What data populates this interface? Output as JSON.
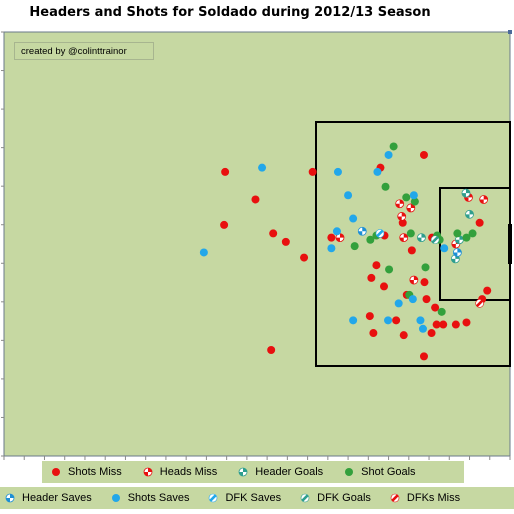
{
  "title": "Headers and Shots for Soldado during 2012/13 Season",
  "credit": "created  by @colinttrainor",
  "colors": {
    "pitch_bg": "#c6d8a2",
    "shots_miss": "#e8100f",
    "heads_miss": "#e8100f",
    "header_goals": "#2e9e8e",
    "shot_goals": "#33a03c",
    "header_saves": "#1d8fd6",
    "shots_saves": "#22a7ea",
    "dfk_saves": "#22a7ea",
    "dfk_goals": "#2e9e8e",
    "dfks_miss": "#e8100f"
  },
  "legend": {
    "row1": [
      {
        "key": "shots_miss",
        "label": "Shots Miss",
        "marker": "solid"
      },
      {
        "key": "heads_miss",
        "label": "Heads Miss",
        "marker": "checker"
      },
      {
        "key": "header_goals",
        "label": "Header Goals",
        "marker": "checker"
      },
      {
        "key": "shot_goals",
        "label": "Shot Goals",
        "marker": "solid"
      }
    ],
    "row2": [
      {
        "key": "header_saves",
        "label": "Header Saves",
        "marker": "checker"
      },
      {
        "key": "shots_saves",
        "label": "Shots Saves",
        "marker": "solid"
      },
      {
        "key": "dfk_saves",
        "label": "DFK Saves",
        "marker": "slash"
      },
      {
        "key": "dfk_goals",
        "label": "DFK Goals",
        "marker": "slash"
      },
      {
        "key": "dfks_miss",
        "label": "DFKs Miss",
        "marker": "slash"
      }
    ]
  },
  "chart_data": {
    "type": "scatter",
    "title": "Headers and Shots for Soldado during 2012/13 Season",
    "xlim": [
      0,
      100
    ],
    "ylim": [
      0,
      100
    ],
    "axes": {
      "x_ticks": 25,
      "y_ticks": 11
    },
    "series": [
      {
        "key": "shots_miss",
        "name": "Shots Miss",
        "marker": "solid",
        "points": [
          [
            43.7,
            67
          ],
          [
            43.5,
            54.5
          ],
          [
            49.7,
            60.5
          ],
          [
            53.2,
            52.5
          ],
          [
            55.7,
            50.5
          ],
          [
            59.3,
            46.8
          ],
          [
            64.7,
            51.5
          ],
          [
            61.0,
            67
          ],
          [
            74.4,
            68
          ],
          [
            75.2,
            52
          ],
          [
            72.6,
            42
          ],
          [
            73.6,
            45
          ],
          [
            75.1,
            40
          ],
          [
            79.6,
            38
          ],
          [
            83.1,
            41
          ],
          [
            83.5,
            37
          ],
          [
            85.2,
            35
          ],
          [
            72.3,
            33
          ],
          [
            77.5,
            32
          ],
          [
            73.0,
            29
          ],
          [
            79.0,
            28.5
          ],
          [
            84.5,
            29
          ],
          [
            85.5,
            31
          ],
          [
            86.8,
            31
          ],
          [
            89.3,
            31
          ],
          [
            91.4,
            31.5
          ],
          [
            94.5,
            37
          ],
          [
            95.5,
            39
          ],
          [
            83.0,
            23.5
          ],
          [
            83.0,
            71
          ],
          [
            94.0,
            55
          ],
          [
            52.8,
            25
          ],
          [
            80.6,
            48.5
          ],
          [
            84.6,
            51.5
          ],
          [
            78.8,
            55
          ]
        ]
      },
      {
        "key": "heads_miss",
        "name": "Heads Miss",
        "marker": "checker",
        "points": [
          [
            66.4,
            51.5
          ],
          [
            79.0,
            51.5
          ],
          [
            78.6,
            56.5
          ],
          [
            78.2,
            59.5
          ],
          [
            80.4,
            58.5
          ],
          [
            89.3,
            50
          ],
          [
            94.8,
            60.5
          ],
          [
            91.8,
            61
          ],
          [
            81.0,
            41.5
          ]
        ]
      },
      {
        "key": "header_goals",
        "name": "Header Goals",
        "marker": "checker",
        "points": [
          [
            82.5,
            51.5
          ],
          [
            91.3,
            62
          ],
          [
            92.0,
            57
          ],
          [
            90.0,
            51
          ],
          [
            89.2,
            46.5
          ]
        ]
      },
      {
        "key": "shot_goals",
        "name": "Shot Goals",
        "marker": "solid",
        "points": [
          [
            77.0,
            73
          ],
          [
            75.4,
            63.5
          ],
          [
            73.6,
            52
          ],
          [
            69.3,
            49.5
          ],
          [
            79.5,
            61
          ],
          [
            81.2,
            60
          ],
          [
            72.4,
            51
          ],
          [
            80.4,
            52.5
          ],
          [
            85.6,
            52
          ],
          [
            89.6,
            52.5
          ],
          [
            92.6,
            52.5
          ],
          [
            91.4,
            51.5
          ],
          [
            76.1,
            44
          ],
          [
            80.1,
            38
          ],
          [
            83.3,
            44.5
          ],
          [
            86.5,
            34
          ],
          [
            86.1,
            51
          ]
        ]
      },
      {
        "key": "header_saves",
        "name": "Header Saves",
        "marker": "checker",
        "points": [
          [
            70.8,
            53
          ],
          [
            89.6,
            48
          ]
        ]
      },
      {
        "key": "shots_saves",
        "name": "Shots Saves",
        "marker": "solid",
        "points": [
          [
            51.0,
            68
          ],
          [
            66.0,
            67
          ],
          [
            76.0,
            71
          ],
          [
            73.8,
            67
          ],
          [
            68.0,
            61.5
          ],
          [
            65.8,
            53
          ],
          [
            64.7,
            49
          ],
          [
            69.0,
            56
          ],
          [
            81.0,
            61.5
          ],
          [
            87.0,
            49
          ],
          [
            39.5,
            48
          ],
          [
            69.0,
            32
          ],
          [
            75.9,
            32
          ],
          [
            78.0,
            36
          ],
          [
            80.8,
            37
          ],
          [
            82.3,
            32
          ],
          [
            82.8,
            30
          ]
        ]
      },
      {
        "key": "dfk_saves",
        "name": "DFK Saves",
        "marker": "slash",
        "points": [
          [
            74.3,
            52.5
          ]
        ]
      },
      {
        "key": "dfk_goals",
        "name": "DFK Goals",
        "marker": "slash",
        "points": [
          [
            85.2,
            51
          ]
        ]
      },
      {
        "key": "dfks_miss",
        "name": "DFKs Miss",
        "marker": "slash",
        "points": [
          [
            94.0,
            36
          ]
        ]
      }
    ]
  }
}
